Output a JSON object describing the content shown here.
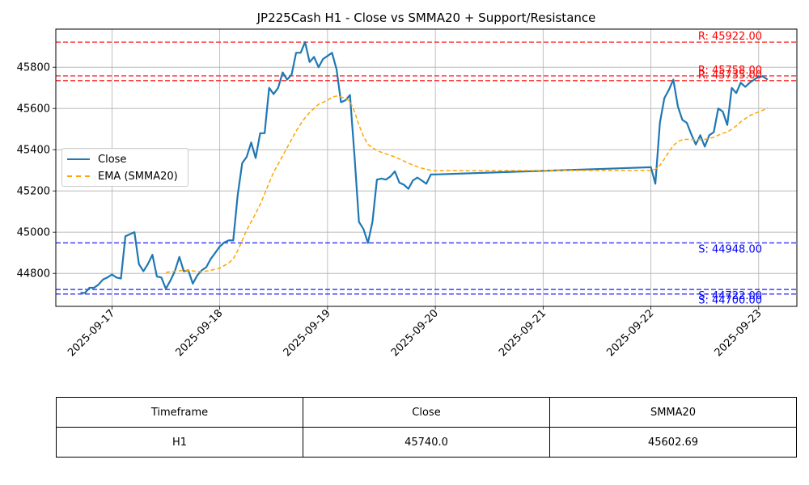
{
  "chart_data": {
    "type": "line",
    "title": "JP225Cash H1 - Close vs SMMA20 + Support/Resistance",
    "xlabel": "",
    "ylabel": "",
    "x_range": [
      "2025-09-16T11:30",
      "2025-09-23T08:30"
    ],
    "ylim": [
      44640,
      45985
    ],
    "x_ticks": [
      "2025-09-17",
      "2025-09-18",
      "2025-09-19",
      "2025-09-20",
      "2025-09-21",
      "2025-09-22",
      "2025-09-23"
    ],
    "y_ticks": [
      44800,
      45000,
      45200,
      45400,
      45600,
      45800
    ],
    "grid": true,
    "legend_position": "center-left",
    "series": [
      {
        "name": "Close",
        "color": "#1f77b4",
        "style": "solid",
        "points": [
          [
            "2025-09-16T17:00",
            44705
          ],
          [
            "2025-09-16T18:00",
            44705
          ],
          [
            "2025-09-16T19:00",
            44730
          ],
          [
            "2025-09-16T20:00",
            44730
          ],
          [
            "2025-09-16T21:00",
            44745
          ],
          [
            "2025-09-16T22:00",
            44770
          ],
          [
            "2025-09-16T23:00",
            44780
          ],
          [
            "2025-09-17T00:00",
            44795
          ],
          [
            "2025-09-17T01:00",
            44780
          ],
          [
            "2025-09-17T02:00",
            44775
          ],
          [
            "2025-09-17T03:00",
            44980
          ],
          [
            "2025-09-17T04:00",
            44990
          ],
          [
            "2025-09-17T05:00",
            45000
          ],
          [
            "2025-09-17T06:00",
            44845
          ],
          [
            "2025-09-17T07:00",
            44810
          ],
          [
            "2025-09-17T08:00",
            44845
          ],
          [
            "2025-09-17T09:00",
            44890
          ],
          [
            "2025-09-17T10:00",
            44785
          ],
          [
            "2025-09-17T11:00",
            44780
          ],
          [
            "2025-09-17T12:00",
            44725
          ],
          [
            "2025-09-17T13:00",
            44765
          ],
          [
            "2025-09-17T14:00",
            44810
          ],
          [
            "2025-09-17T15:00",
            44880
          ],
          [
            "2025-09-17T16:00",
            44810
          ],
          [
            "2025-09-17T17:00",
            44815
          ],
          [
            "2025-09-17T18:00",
            44750
          ],
          [
            "2025-09-17T19:00",
            44790
          ],
          [
            "2025-09-17T20:00",
            44815
          ],
          [
            "2025-09-17T21:00",
            44830
          ],
          [
            "2025-09-17T22:00",
            44870
          ],
          [
            "2025-09-17T23:00",
            44900
          ],
          [
            "2025-09-18T00:00",
            44930
          ],
          [
            "2025-09-18T01:00",
            44950
          ],
          [
            "2025-09-18T02:00",
            44960
          ],
          [
            "2025-09-18T03:00",
            44960
          ],
          [
            "2025-09-18T04:00",
            45180
          ],
          [
            "2025-09-18T05:00",
            45335
          ],
          [
            "2025-09-18T06:00",
            45365
          ],
          [
            "2025-09-18T07:00",
            45435
          ],
          [
            "2025-09-18T08:00",
            45360
          ],
          [
            "2025-09-18T09:00",
            45480
          ],
          [
            "2025-09-18T10:00",
            45480
          ],
          [
            "2025-09-18T11:00",
            45700
          ],
          [
            "2025-09-18T12:00",
            45670
          ],
          [
            "2025-09-18T13:00",
            45700
          ],
          [
            "2025-09-18T14:00",
            45775
          ],
          [
            "2025-09-18T15:00",
            45740
          ],
          [
            "2025-09-18T16:00",
            45765
          ],
          [
            "2025-09-18T17:00",
            45870
          ],
          [
            "2025-09-18T18:00",
            45870
          ],
          [
            "2025-09-18T19:00",
            45922
          ],
          [
            "2025-09-18T20:00",
            45825
          ],
          [
            "2025-09-18T21:00",
            45850
          ],
          [
            "2025-09-18T22:00",
            45800
          ],
          [
            "2025-09-18T23:00",
            45840
          ],
          [
            "2025-09-19T00:00",
            45855
          ],
          [
            "2025-09-19T01:00",
            45870
          ],
          [
            "2025-09-19T02:00",
            45790
          ],
          [
            "2025-09-19T03:00",
            45630
          ],
          [
            "2025-09-19T04:00",
            45640
          ],
          [
            "2025-09-19T05:00",
            45665
          ],
          [
            "2025-09-19T06:00",
            45370
          ],
          [
            "2025-09-19T07:00",
            45050
          ],
          [
            "2025-09-19T08:00",
            45015
          ],
          [
            "2025-09-19T09:00",
            44948
          ],
          [
            "2025-09-19T10:00",
            45050
          ],
          [
            "2025-09-19T11:00",
            45255
          ],
          [
            "2025-09-19T12:00",
            45260
          ],
          [
            "2025-09-19T13:00",
            45255
          ],
          [
            "2025-09-19T14:00",
            45270
          ],
          [
            "2025-09-19T15:00",
            45295
          ],
          [
            "2025-09-19T16:00",
            45240
          ],
          [
            "2025-09-19T17:00",
            45230
          ],
          [
            "2025-09-19T18:00",
            45210
          ],
          [
            "2025-09-19T19:00",
            45250
          ],
          [
            "2025-09-19T20:00",
            45265
          ],
          [
            "2025-09-19T21:00",
            45250
          ],
          [
            "2025-09-19T22:00",
            45235
          ],
          [
            "2025-09-19T23:00",
            45280
          ],
          [
            "2025-09-20T00:00",
            45280
          ],
          [
            "2025-09-22T00:00",
            45315
          ],
          [
            "2025-09-22T01:00",
            45235
          ],
          [
            "2025-09-22T02:00",
            45530
          ],
          [
            "2025-09-22T03:00",
            45650
          ],
          [
            "2025-09-22T04:00",
            45690
          ],
          [
            "2025-09-22T05:00",
            45740
          ],
          [
            "2025-09-22T06:00",
            45610
          ],
          [
            "2025-09-22T07:00",
            45545
          ],
          [
            "2025-09-22T08:00",
            45530
          ],
          [
            "2025-09-22T09:00",
            45475
          ],
          [
            "2025-09-22T10:00",
            45425
          ],
          [
            "2025-09-22T11:00",
            45470
          ],
          [
            "2025-09-22T12:00",
            45415
          ],
          [
            "2025-09-22T13:00",
            45470
          ],
          [
            "2025-09-22T14:00",
            45485
          ],
          [
            "2025-09-22T15:00",
            45600
          ],
          [
            "2025-09-22T16:00",
            45585
          ],
          [
            "2025-09-22T17:00",
            45520
          ],
          [
            "2025-09-22T18:00",
            45700
          ],
          [
            "2025-09-22T19:00",
            45675
          ],
          [
            "2025-09-22T20:00",
            45725
          ],
          [
            "2025-09-22T21:00",
            45705
          ],
          [
            "2025-09-22T22:00",
            45725
          ],
          [
            "2025-09-22T23:00",
            45740
          ],
          [
            "2025-09-23T00:00",
            45755
          ],
          [
            "2025-09-23T01:00",
            45755
          ],
          [
            "2025-09-23T02:00",
            45740
          ]
        ]
      },
      {
        "name": "EMA (SMMA20)",
        "color": "#ffa500",
        "style": "dashed",
        "points": [
          [
            "2025-09-17T12:00",
            44805
          ],
          [
            "2025-09-17T14:00",
            44810
          ],
          [
            "2025-09-17T16:00",
            44815
          ],
          [
            "2025-09-17T18:00",
            44812
          ],
          [
            "2025-09-17T20:00",
            44808
          ],
          [
            "2025-09-17T22:00",
            44815
          ],
          [
            "2025-09-18T00:00",
            44825
          ],
          [
            "2025-09-18T02:00",
            44850
          ],
          [
            "2025-09-18T03:00",
            44870
          ],
          [
            "2025-09-18T04:00",
            44910
          ],
          [
            "2025-09-18T05:00",
            44960
          ],
          [
            "2025-09-18T06:00",
            45010
          ],
          [
            "2025-09-18T07:00",
            45050
          ],
          [
            "2025-09-18T08:00",
            45090
          ],
          [
            "2025-09-18T09:00",
            45135
          ],
          [
            "2025-09-18T10:00",
            45185
          ],
          [
            "2025-09-18T11:00",
            45240
          ],
          [
            "2025-09-18T12:00",
            45290
          ],
          [
            "2025-09-18T13:00",
            45330
          ],
          [
            "2025-09-18T14:00",
            45370
          ],
          [
            "2025-09-18T15:00",
            45410
          ],
          [
            "2025-09-18T16:00",
            45450
          ],
          [
            "2025-09-18T17:00",
            45490
          ],
          [
            "2025-09-18T18:00",
            45525
          ],
          [
            "2025-09-18T19:00",
            45555
          ],
          [
            "2025-09-18T20:00",
            45580
          ],
          [
            "2025-09-18T21:00",
            45600
          ],
          [
            "2025-09-18T22:00",
            45620
          ],
          [
            "2025-09-19T00:00",
            45640
          ],
          [
            "2025-09-19T01:00",
            45655
          ],
          [
            "2025-09-19T02:00",
            45660
          ],
          [
            "2025-09-19T03:00",
            45655
          ],
          [
            "2025-09-19T04:00",
            45650
          ],
          [
            "2025-09-19T05:00",
            45635
          ],
          [
            "2025-09-19T06:00",
            45585
          ],
          [
            "2025-09-19T07:00",
            45520
          ],
          [
            "2025-09-19T08:00",
            45465
          ],
          [
            "2025-09-19T09:00",
            45425
          ],
          [
            "2025-09-19T10:00",
            45410
          ],
          [
            "2025-09-19T11:00",
            45395
          ],
          [
            "2025-09-19T13:00",
            45380
          ],
          [
            "2025-09-19T15:00",
            45365
          ],
          [
            "2025-09-19T17:00",
            45345
          ],
          [
            "2025-09-19T19:00",
            45325
          ],
          [
            "2025-09-19T21:00",
            45310
          ],
          [
            "2025-09-19T23:00",
            45300
          ],
          [
            "2025-09-20T00:00",
            45298
          ],
          [
            "2025-09-22T00:00",
            45300
          ],
          [
            "2025-09-22T01:00",
            45305
          ],
          [
            "2025-09-22T02:00",
            45325
          ],
          [
            "2025-09-22T03:00",
            45355
          ],
          [
            "2025-09-22T04:00",
            45390
          ],
          [
            "2025-09-22T05:00",
            45420
          ],
          [
            "2025-09-22T06:00",
            45440
          ],
          [
            "2025-09-22T07:00",
            45448
          ],
          [
            "2025-09-22T08:00",
            45450
          ],
          [
            "2025-09-22T10:00",
            45448
          ],
          [
            "2025-09-22T12:00",
            45450
          ],
          [
            "2025-09-22T14:00",
            45460
          ],
          [
            "2025-09-22T15:00",
            45470
          ],
          [
            "2025-09-22T16:00",
            45480
          ],
          [
            "2025-09-22T17:00",
            45485
          ],
          [
            "2025-09-22T18:00",
            45500
          ],
          [
            "2025-09-22T19:00",
            45515
          ],
          [
            "2025-09-22T20:00",
            45535
          ],
          [
            "2025-09-22T21:00",
            45550
          ],
          [
            "2025-09-22T22:00",
            45565
          ],
          [
            "2025-09-22T23:00",
            45575
          ],
          [
            "2025-09-23T00:00",
            45583
          ],
          [
            "2025-09-23T01:00",
            45592
          ],
          [
            "2025-09-23T02:00",
            45602.69
          ]
        ]
      }
    ],
    "levels": [
      {
        "kind": "resistance",
        "value": 45922.0,
        "label": "R: 45922.00",
        "color": "#ff0000"
      },
      {
        "kind": "resistance",
        "value": 45758.0,
        "label": "R: 45758.00",
        "color": "#ff0000"
      },
      {
        "kind": "resistance",
        "value": 45735.0,
        "label": "R: 45735.00",
        "color": "#ff0000"
      },
      {
        "kind": "support",
        "value": 44948.0,
        "label": "S: 44948.00",
        "color": "#0000ff"
      },
      {
        "kind": "support",
        "value": 44722.0,
        "label": "S: 44722.00",
        "color": "#0000ff"
      },
      {
        "kind": "support",
        "value": 44700.0,
        "label": "S: 44700.00",
        "color": "#0000ff"
      }
    ]
  },
  "legend": {
    "close_label": "Close",
    "ema_label": "EMA (SMMA20)"
  },
  "summary_table": {
    "headers": [
      "Timeframe",
      "Close",
      "SMMA20"
    ],
    "row": [
      "H1",
      "45740.0",
      "45602.69"
    ]
  }
}
